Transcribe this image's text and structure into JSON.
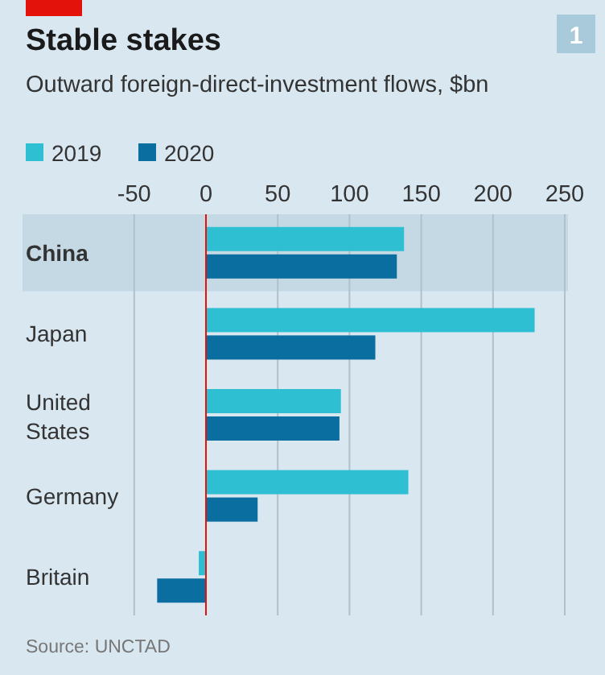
{
  "chart_data": {
    "type": "bar",
    "orientation": "horizontal",
    "title": "Stable stakes",
    "subtitle": "Outward foreign-direct-investment flows, $bn",
    "categories": [
      "China",
      "Japan",
      "United States",
      "Germany",
      "Britain"
    ],
    "series": [
      {
        "name": "2019",
        "color": "#2fbfd3",
        "values": [
          138,
          229,
          94,
          141,
          -5
        ]
      },
      {
        "name": "2020",
        "color": "#0a6ea0",
        "values": [
          133,
          118,
          93,
          36,
          -34
        ]
      }
    ],
    "xlim": [
      -50,
      250
    ],
    "xticks": [
      -50,
      0,
      50,
      100,
      150,
      200,
      250
    ],
    "grid": "x",
    "legend": "top left",
    "ref_lines": [
      {
        "axis": "x",
        "value": 0,
        "color": "#e3120b"
      }
    ],
    "bands": [
      {
        "axis": "y",
        "from": "China",
        "to": "China",
        "color": "#c5d9e5"
      }
    ],
    "annotations": [
      "Source: UNCTAD",
      "1"
    ]
  }
}
